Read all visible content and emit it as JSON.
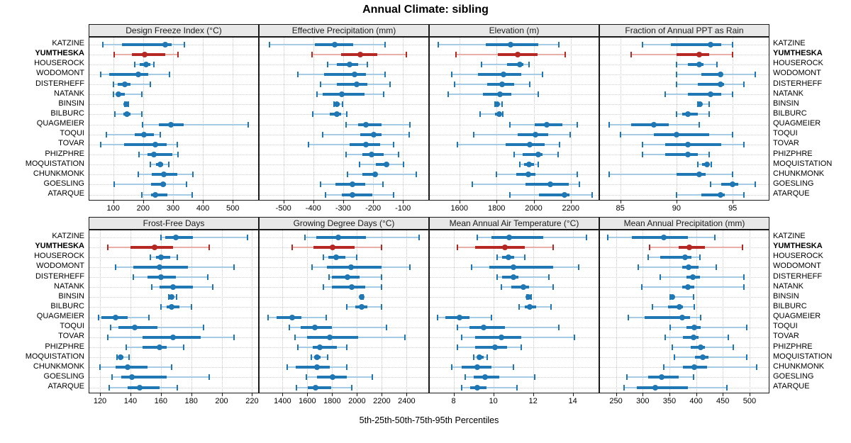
{
  "title": "Annual Climate: sibling",
  "xlabel": "5th-25th-50th-75th-95th Percentiles",
  "sites": [
    "KATZINE",
    "YUMTHESKA",
    "HOUSEROCK",
    "WODOMONT",
    "DISTERHEFF",
    "NATANK",
    "BINSIN",
    "BILBURC",
    "QUAGMEIER",
    "TOQUI",
    "TOVAR",
    "PHIZPHRE",
    "MOQUISTATION",
    "CHUNKMONK",
    "GOESLING",
    "ATARQUE"
  ],
  "highlight_site": "YUMTHESKA",
  "colors": {
    "series": "#1f77b4",
    "series_light": "#a6cbe4",
    "highlight": "#b52823",
    "highlight_light": "#e9b0aa",
    "strip_bg": "#e8e8e8",
    "grid": "#c6c6c6",
    "frame": "#1a1a1a"
  },
  "chart_data": {
    "type": "dotplot",
    "orientation": "horizontal",
    "percentiles": [
      5,
      25,
      50,
      75,
      95
    ],
    "grid": "dotted at ticks and rows",
    "legend_position": "none",
    "panels": [
      {
        "title": "Design Freeze Index (°C)",
        "row": "top",
        "col": 0,
        "ticks": [
          100,
          200,
          300,
          400,
          500
        ],
        "xlim": [
          20,
          585
        ],
        "values": [
          [
            64,
            129,
            275,
            295,
            338
          ],
          [
            102,
            162,
            206,
            275,
            317
          ],
          [
            172,
            188,
            210,
            224,
            236
          ],
          [
            57,
            86,
            183,
            216,
            287
          ],
          [
            100,
            115,
            138,
            158,
            223
          ],
          [
            101,
            110,
            118,
            140,
            195
          ],
          [
            139,
            141,
            144,
            147,
            151
          ],
          [
            106,
            133,
            145,
            157,
            195
          ],
          [
            197,
            253,
            293,
            336,
            551
          ],
          [
            78,
            173,
            203,
            236,
            258
          ],
          [
            57,
            137,
            240,
            279,
            314
          ],
          [
            187,
            214,
            237,
            298,
            316
          ],
          [
            224,
            242,
            258,
            267,
            285
          ],
          [
            184,
            228,
            268,
            315,
            367
          ],
          [
            103,
            226,
            267,
            277,
            344
          ],
          [
            195,
            226,
            240,
            281,
            363
          ]
        ]
      },
      {
        "title": "Effective Precipitation (mm)",
        "row": "top",
        "col": 1,
        "ticks": [
          -500,
          -400,
          -300,
          -200,
          -100
        ],
        "xlim": [
          -580,
          -15
        ],
        "values": [
          [
            -547,
            -396,
            -328,
            -267,
            -159
          ],
          [
            -405,
            -307,
            -243,
            -187,
            -88
          ],
          [
            -353,
            -321,
            -278,
            -250,
            -219
          ],
          [
            -453,
            -365,
            -262,
            -223,
            -161
          ],
          [
            -375,
            -321,
            -254,
            -219,
            -144
          ],
          [
            -387,
            -369,
            -304,
            -228,
            -164
          ],
          [
            -331,
            -326,
            -321,
            -312,
            -302
          ],
          [
            -402,
            -345,
            -321,
            -306,
            -288
          ],
          [
            -291,
            -250,
            -223,
            -172,
            -77
          ],
          [
            -370,
            -242,
            -199,
            -172,
            -80
          ],
          [
            -416,
            -278,
            -223,
            -176,
            -131
          ],
          [
            -291,
            -235,
            -205,
            -164,
            -116
          ],
          [
            -246,
            -191,
            -156,
            -148,
            -99
          ],
          [
            -286,
            -235,
            -192,
            -185,
            -55
          ],
          [
            -375,
            -325,
            -268,
            -227,
            -168
          ],
          [
            -359,
            -304,
            -268,
            -202,
            -132
          ]
        ]
      },
      {
        "title": "Elevation (m)",
        "row": "top",
        "col": 2,
        "ticks": [
          1600,
          1800,
          2000,
          2200
        ],
        "xlim": [
          1440,
          2350
        ],
        "values": [
          [
            1485,
            1740,
            1875,
            2025,
            2135
          ],
          [
            1580,
            1805,
            1915,
            2020,
            2170
          ],
          [
            1720,
            1855,
            1925,
            1945,
            1975
          ],
          [
            1558,
            1698,
            1836,
            1932,
            2047
          ],
          [
            1575,
            1750,
            1830,
            1895,
            1980
          ],
          [
            1540,
            1728,
            1820,
            1880,
            2025
          ],
          [
            1790,
            1798,
            1803,
            1812,
            1830
          ],
          [
            1712,
            1790,
            1815,
            1825,
            1833
          ],
          [
            1870,
            2005,
            2070,
            2155,
            2235
          ],
          [
            1675,
            1915,
            2010,
            2080,
            2198
          ],
          [
            1590,
            1850,
            1980,
            2060,
            2140
          ],
          [
            1895,
            1940,
            2025,
            2047,
            2130
          ],
          [
            1925,
            1950,
            1977,
            2003,
            2025
          ],
          [
            1800,
            1905,
            1970,
            2010,
            2235
          ],
          [
            1670,
            1955,
            2090,
            2190,
            2245
          ],
          [
            1870,
            2030,
            2165,
            2192,
            2315
          ]
        ]
      },
      {
        "title": "Fraction of Annual PPT as Rain",
        "row": "top",
        "col": 3,
        "ticks": [
          85,
          90,
          95
        ],
        "xlim": [
          83.2,
          98.2
        ],
        "values": [
          [
            87,
            89.5,
            93,
            94,
            95
          ],
          [
            86,
            90,
            92,
            92.9,
            95
          ],
          [
            90,
            91,
            92,
            92.4,
            93.6
          ],
          [
            90,
            92.2,
            93.9,
            94.1,
            97
          ],
          [
            90,
            91.9,
            93.9,
            94.2,
            96
          ],
          [
            89,
            91,
            93,
            94,
            95
          ],
          [
            91.9,
            92,
            92.1,
            92.3,
            92.9
          ],
          [
            90,
            90.5,
            91,
            91.9,
            92.9
          ],
          [
            84,
            86,
            88,
            89.3,
            92
          ],
          [
            85,
            88,
            90,
            92.9,
            95
          ],
          [
            87,
            89,
            91,
            94,
            96
          ],
          [
            87,
            89,
            91,
            91.9,
            92.9
          ],
          [
            91.9,
            92.3,
            92.7,
            92.9,
            93.1
          ],
          [
            84,
            90,
            92,
            92.6,
            95
          ],
          [
            93,
            94,
            95,
            95.5,
            97
          ],
          [
            90,
            92.2,
            93.9,
            94.3,
            96
          ]
        ]
      },
      {
        "title": "Frost-Free Days",
        "row": "bottom",
        "col": 0,
        "ticks": [
          120,
          140,
          160,
          180,
          200,
          220
        ],
        "xlim": [
          113,
          224
        ],
        "values": [
          [
            160,
            163,
            170,
            181,
            217
          ],
          [
            125,
            140,
            156,
            168,
            192
          ],
          [
            153,
            157,
            160,
            166,
            171
          ],
          [
            130,
            142,
            159,
            178,
            208
          ],
          [
            142,
            151,
            160,
            170,
            191
          ],
          [
            154,
            159,
            168,
            181,
            194
          ],
          [
            165,
            166,
            167,
            168.5,
            170.5
          ],
          [
            160,
            164,
            167,
            172,
            180
          ],
          [
            119,
            121,
            130,
            138,
            152
          ],
          [
            127,
            132,
            143,
            158,
            188
          ],
          [
            125,
            148,
            168,
            186,
            208
          ],
          [
            137,
            148,
            159,
            164,
            175
          ],
          [
            131,
            132,
            133.5,
            135.5,
            139
          ],
          [
            120,
            130,
            138,
            151,
            167
          ],
          [
            128,
            134,
            141,
            164,
            192
          ],
          [
            126,
            138,
            146,
            159,
            171
          ]
        ]
      },
      {
        "title": "Growing Degree Days (°C)",
        "row": "bottom",
        "col": 1,
        "ticks": [
          1400,
          1600,
          1800,
          2000,
          2200,
          2400
        ],
        "xlim": [
          1215,
          2575
        ],
        "values": [
          [
            1580,
            1670,
            1850,
            2075,
            2500
          ],
          [
            1475,
            1650,
            1805,
            1980,
            2200
          ],
          [
            1730,
            1770,
            1830,
            1905,
            2000
          ],
          [
            1640,
            1760,
            1950,
            2200,
            2425
          ],
          [
            1775,
            1800,
            1925,
            2020,
            2200
          ],
          [
            1730,
            1800,
            1960,
            2065,
            2200
          ],
          [
            2030,
            2034,
            2038,
            2043,
            2050
          ],
          [
            1915,
            1985,
            2040,
            2085,
            2200
          ],
          [
            1285,
            1350,
            1475,
            1550,
            1750
          ],
          [
            1455,
            1545,
            1660,
            1800,
            2240
          ],
          [
            1500,
            1600,
            1780,
            2010,
            2385
          ],
          [
            1525,
            1645,
            1700,
            1840,
            1920
          ],
          [
            1632,
            1656,
            1676,
            1709,
            1762
          ],
          [
            1435,
            1505,
            1675,
            1780,
            1920
          ],
          [
            1590,
            1680,
            1805,
            1920,
            2125
          ],
          [
            1510,
            1605,
            1665,
            1790,
            1960
          ]
        ]
      },
      {
        "title": "Mean Annual Air Temperature (°C)",
        "row": "bottom",
        "col": 2,
        "ticks": [
          8,
          10,
          12,
          14
        ],
        "xlim": [
          6.8,
          15.3
        ],
        "values": [
          [
            9.2,
            9.9,
            10.8,
            12.5,
            14.7
          ],
          [
            8.2,
            9.1,
            10.6,
            11.6,
            13.0
          ],
          [
            10.2,
            10.45,
            10.75,
            11.05,
            11.6
          ],
          [
            8.9,
            9.8,
            11.0,
            13.0,
            14.3
          ],
          [
            10.2,
            10.45,
            11.0,
            11.25,
            12.8
          ],
          [
            10.4,
            10.9,
            11.5,
            11.8,
            13.0
          ],
          [
            11.7,
            11.72,
            11.76,
            11.8,
            11.92
          ],
          [
            11.3,
            11.6,
            11.85,
            12.15,
            12.9
          ],
          [
            7.2,
            7.6,
            8.3,
            8.8,
            9.9
          ],
          [
            8.2,
            8.8,
            9.5,
            10.6,
            13.3
          ],
          [
            8.4,
            9.1,
            10.4,
            11.4,
            14.1
          ],
          [
            8.2,
            9.1,
            10.1,
            10.7,
            11.4
          ],
          [
            9.0,
            9.2,
            9.3,
            9.5,
            9.7
          ],
          [
            7.9,
            8.4,
            9.2,
            9.9,
            11.0
          ],
          [
            8.6,
            9.0,
            9.6,
            10.3,
            12.1
          ],
          [
            8.4,
            8.85,
            9.2,
            9.65,
            11.2
          ]
        ]
      },
      {
        "title": "Mean Annual Precipitation (mm)",
        "row": "bottom",
        "col": 3,
        "ticks": [
          250,
          300,
          350,
          400,
          450,
          500
        ],
        "xlim": [
          220,
          536
        ],
        "values": [
          [
            235,
            280,
            340,
            385,
            435
          ],
          [
            313,
            367,
            387,
            417,
            487
          ],
          [
            310,
            333,
            379,
            391,
            407
          ],
          [
            292,
            374,
            386,
            405,
            438
          ],
          [
            333,
            382,
            394,
            407,
            490
          ],
          [
            298,
            374,
            385,
            397,
            489
          ],
          [
            351,
            353,
            356,
            360,
            395
          ],
          [
            318,
            347,
            369,
            376,
            397
          ],
          [
            273,
            303,
            374,
            389,
            408
          ],
          [
            351,
            382,
            397,
            408,
            495
          ],
          [
            342,
            375,
            395,
            405,
            460
          ],
          [
            355,
            390,
            408,
            417,
            469
          ],
          [
            360,
            398,
            413,
            423,
            495
          ],
          [
            340,
            375,
            396,
            420,
            513
          ],
          [
            271,
            310,
            335,
            368,
            395
          ],
          [
            265,
            289,
            323,
            385,
            457
          ]
        ]
      }
    ]
  }
}
